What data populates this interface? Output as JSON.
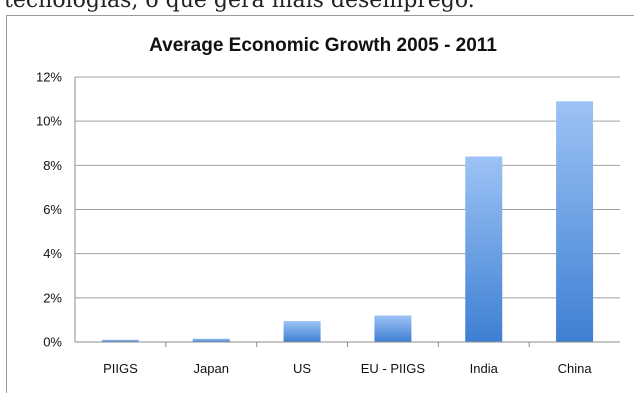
{
  "page": {
    "cut_off_text": "tecnologias, o que gera mais desemprego."
  },
  "chart_data": {
    "type": "bar",
    "title": "Average Economic Growth 2005 - 2011",
    "categories": [
      "PIIGS",
      "Japan",
      "US",
      "EU - PIIGS",
      "India",
      "China"
    ],
    "values": [
      0.1,
      0.15,
      0.95,
      1.2,
      8.4,
      10.9
    ],
    "ylim": [
      0,
      12
    ],
    "yticks": [
      "0%",
      "2%",
      "4%",
      "6%",
      "8%",
      "10%",
      "12%"
    ],
    "ytick_values": [
      0,
      2,
      4,
      6,
      8,
      10,
      12
    ],
    "grid": true,
    "colors": {
      "bar_top": "#9dc3f5",
      "bar_bottom": "#3e7fd3",
      "grid": "#a0a0a0"
    }
  }
}
